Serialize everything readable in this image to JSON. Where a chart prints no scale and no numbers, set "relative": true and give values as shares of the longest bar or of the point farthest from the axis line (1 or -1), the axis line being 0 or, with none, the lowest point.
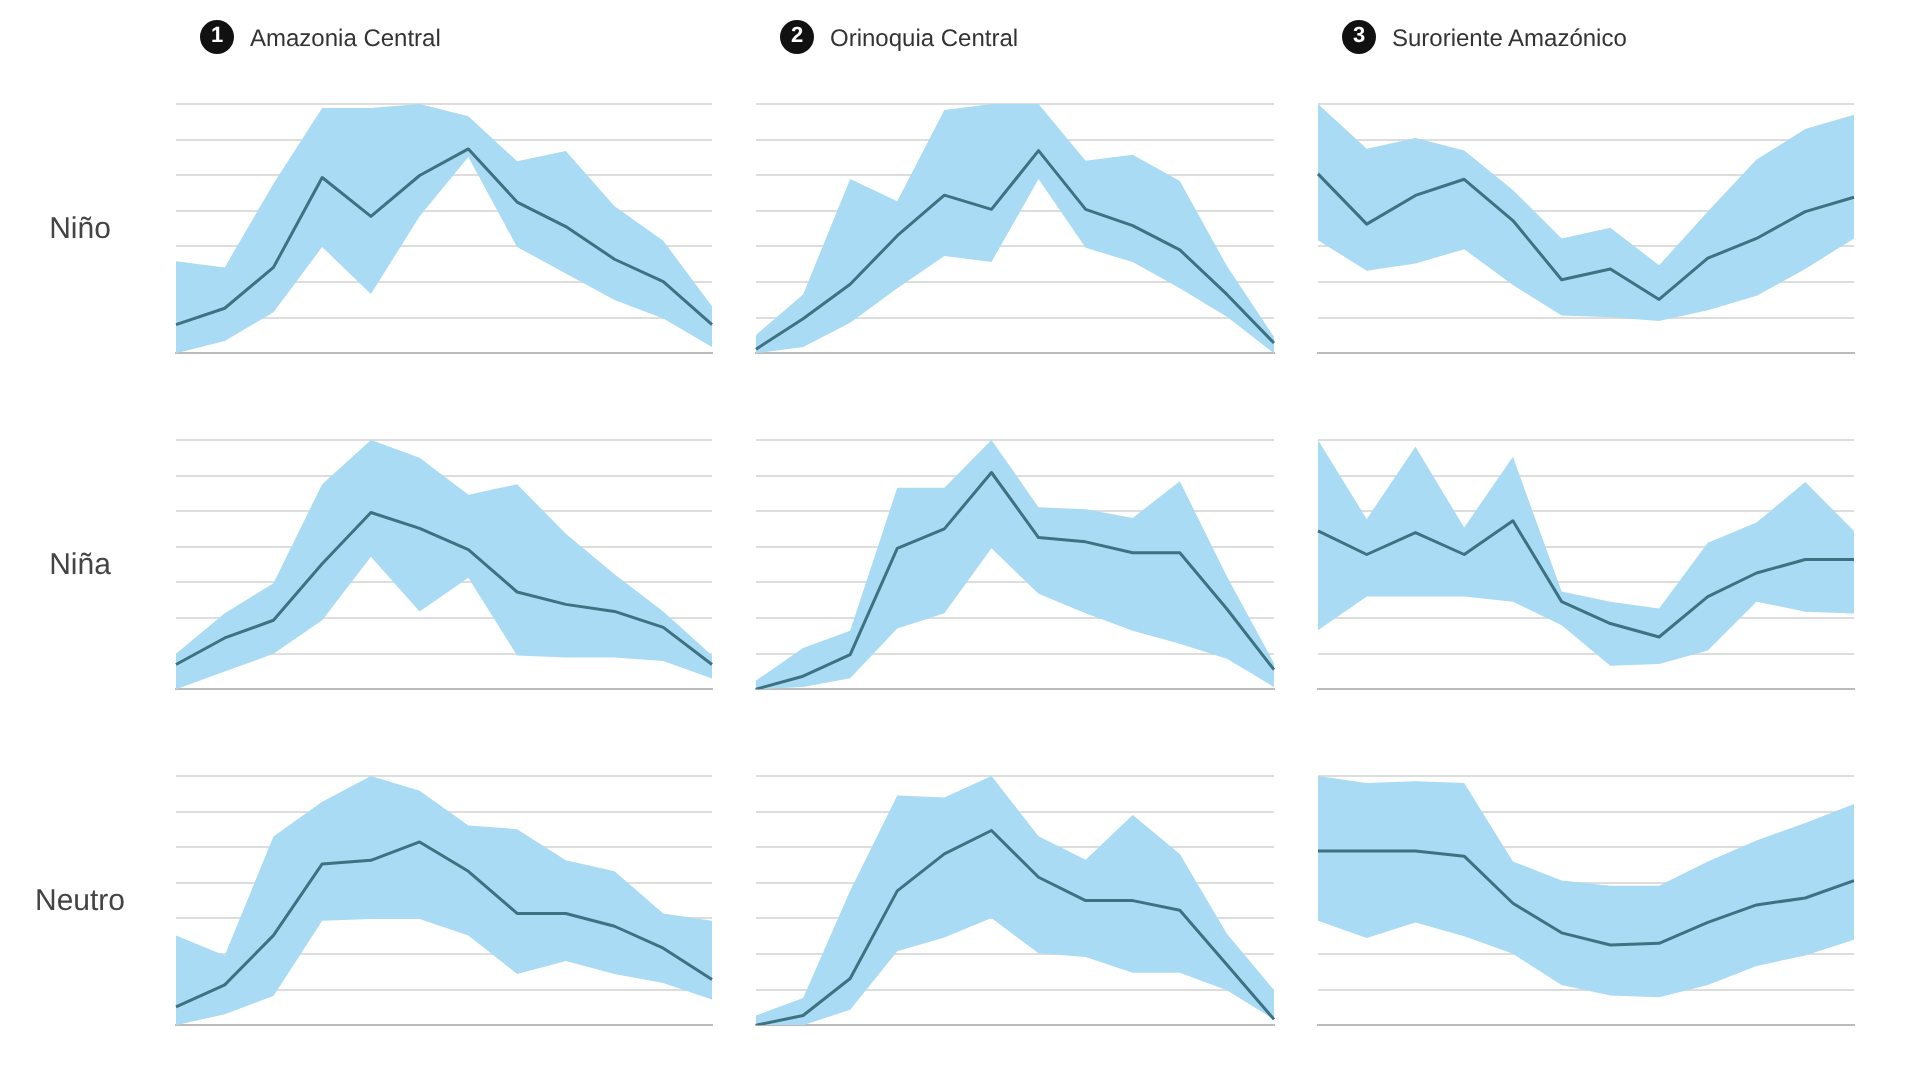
{
  "chart_data": [
    {
      "type": "line",
      "relative": true,
      "grid": "y",
      "title": "Amazonia Central",
      "annotations": [
        "1"
      ],
      "ylabel": "Niño",
      "categories": [
        null,
        null,
        null,
        null,
        null,
        null,
        null,
        null,
        null,
        null,
        null,
        null
      ],
      "series": [
        {
          "color": "#3d7282",
          "values": [
            0.14,
            0.22,
            0.42,
            0.86,
            0.67,
            0.87,
            1,
            0.74,
            0.62,
            0.46,
            0.35,
            0.14
          ],
          "lower": [
            0,
            0.06,
            0.2,
            0.52,
            0.29,
            0.67,
            0.96,
            0.52,
            0.39,
            0.26,
            0.17,
            0.03
          ],
          "upper": [
            0.45,
            0.42,
            0.83,
            1.2,
            1.2,
            1.22,
            1.16,
            0.94,
            0.99,
            0.72,
            0.55,
            0.23
          ]
        }
      ]
    },
    {
      "type": "line",
      "relative": true,
      "grid": "y",
      "title": "Orinoquia Central",
      "annotations": [
        "2"
      ],
      "categories": [
        null,
        null,
        null,
        null,
        null,
        null,
        null,
        null,
        null,
        null,
        null,
        null
      ],
      "series": [
        {
          "color": "#3d7282",
          "values": [
            0.02,
            0.17,
            0.34,
            0.58,
            0.78,
            0.71,
            1,
            0.71,
            0.63,
            0.51,
            0.29,
            0.05
          ],
          "lower": [
            0,
            0.03,
            0.15,
            0.32,
            0.48,
            0.45,
            0.86,
            0.52,
            0.45,
            0.32,
            0.18,
            0
          ],
          "upper": [
            0.09,
            0.29,
            0.86,
            0.75,
            1.2,
            1.23,
            1.23,
            0.95,
            0.98,
            0.85,
            0.43,
            0.08
          ]
        }
      ]
    },
    {
      "type": "line",
      "relative": true,
      "grid": "y",
      "title": "Suroriente Amazónico",
      "annotations": [
        "3"
      ],
      "categories": [
        null,
        null,
        null,
        null,
        null,
        null,
        null,
        null,
        null,
        null,
        null,
        null
      ],
      "series": [
        {
          "color": "#3d7282",
          "values": [
            1,
            0.72,
            0.88,
            0.97,
            0.74,
            0.41,
            0.47,
            0.3,
            0.53,
            0.64,
            0.79,
            0.87
          ],
          "lower": [
            0.63,
            0.46,
            0.5,
            0.58,
            0.38,
            0.21,
            0.2,
            0.18,
            0.24,
            0.32,
            0.47,
            0.64
          ],
          "upper": [
            1.39,
            1.14,
            1.2,
            1.13,
            0.91,
            0.64,
            0.7,
            0.49,
            0.79,
            1.08,
            1.25,
            1.33
          ]
        }
      ]
    },
    {
      "type": "line",
      "relative": true,
      "grid": "y",
      "ylabel": "Niña",
      "categories": [
        null,
        null,
        null,
        null,
        null,
        null,
        null,
        null,
        null,
        null,
        null,
        null
      ],
      "series": [
        {
          "color": "#3d7282",
          "values": [
            0.14,
            0.29,
            0.39,
            0.71,
            1,
            0.91,
            0.79,
            0.55,
            0.48,
            0.44,
            0.35,
            0.14
          ],
          "lower": [
            0,
            0.1,
            0.2,
            0.39,
            0.75,
            0.44,
            0.63,
            0.19,
            0.18,
            0.18,
            0.16,
            0.06
          ],
          "upper": [
            0.2,
            0.43,
            0.6,
            1.16,
            1.41,
            1.31,
            1.1,
            1.16,
            0.88,
            0.65,
            0.44,
            0.19
          ]
        }
      ]
    },
    {
      "type": "line",
      "relative": true,
      "grid": "y",
      "categories": [
        null,
        null,
        null,
        null,
        null,
        null,
        null,
        null,
        null,
        null,
        null,
        null
      ],
      "series": [
        {
          "color": "#3d7282",
          "values": [
            0,
            0.06,
            0.16,
            0.65,
            0.74,
            1,
            0.7,
            0.68,
            0.63,
            0.63,
            0.37,
            0.09
          ],
          "lower": [
            0,
            0.01,
            0.05,
            0.28,
            0.35,
            0.65,
            0.44,
            0.35,
            0.27,
            0.21,
            0.14,
            0.01
          ],
          "upper": [
            0.04,
            0.19,
            0.27,
            0.93,
            0.93,
            1.15,
            0.84,
            0.83,
            0.79,
            0.96,
            0.52,
            0.12
          ]
        }
      ]
    },
    {
      "type": "line",
      "relative": true,
      "grid": "y",
      "categories": [
        null,
        null,
        null,
        null,
        null,
        null,
        null,
        null,
        null,
        null,
        null,
        null
      ],
      "series": [
        {
          "color": "#3d7282",
          "values": [
            0.94,
            0.8,
            0.93,
            0.8,
            1,
            0.52,
            0.39,
            0.31,
            0.55,
            0.69,
            0.77,
            0.77
          ],
          "lower": [
            0.35,
            0.55,
            0.55,
            0.55,
            0.52,
            0.38,
            0.14,
            0.15,
            0.23,
            0.52,
            0.46,
            0.45
          ],
          "upper": [
            1.48,
            1.01,
            1.44,
            0.96,
            1.38,
            0.58,
            0.52,
            0.48,
            0.87,
            0.99,
            1.23,
            0.94
          ]
        }
      ]
    },
    {
      "type": "line",
      "relative": true,
      "grid": "y",
      "ylabel": "Neutro",
      "categories": [
        null,
        null,
        null,
        null,
        null,
        null,
        null,
        null,
        null,
        null,
        null,
        null
      ],
      "series": [
        {
          "color": "#3d7282",
          "values": [
            0.1,
            0.22,
            0.49,
            0.88,
            0.9,
            1,
            0.84,
            0.61,
            0.61,
            0.54,
            0.42,
            0.25
          ],
          "lower": [
            0,
            0.06,
            0.16,
            0.57,
            0.58,
            0.58,
            0.49,
            0.28,
            0.35,
            0.28,
            0.23,
            0.14
          ],
          "upper": [
            0.49,
            0.38,
            1.03,
            1.22,
            1.36,
            1.28,
            1.09,
            1.07,
            0.9,
            0.84,
            0.61,
            0.57
          ]
        }
      ]
    },
    {
      "type": "line",
      "relative": true,
      "grid": "y",
      "categories": [
        null,
        null,
        null,
        null,
        null,
        null,
        null,
        null,
        null,
        null,
        null,
        null
      ],
      "series": [
        {
          "color": "#3d7282",
          "values": [
            0,
            0.05,
            0.24,
            0.69,
            0.88,
            1,
            0.76,
            0.64,
            0.64,
            0.59,
            0.31,
            0.03
          ],
          "lower": [
            0,
            0,
            0.08,
            0.38,
            0.45,
            0.55,
            0.37,
            0.35,
            0.27,
            0.27,
            0.18,
            0.03
          ],
          "upper": [
            0.05,
            0.14,
            0.69,
            1.18,
            1.17,
            1.28,
            0.97,
            0.85,
            1.08,
            0.88,
            0.47,
            0.18
          ]
        }
      ]
    },
    {
      "type": "line",
      "relative": true,
      "grid": "y",
      "categories": [
        null,
        null,
        null,
        null,
        null,
        null,
        null,
        null,
        null,
        null,
        null,
        null
      ],
      "series": [
        {
          "color": "#3d7282",
          "values": [
            1,
            1,
            1,
            0.97,
            0.7,
            0.53,
            0.46,
            0.47,
            0.59,
            0.69,
            0.73,
            0.83
          ],
          "lower": [
            0.6,
            0.5,
            0.59,
            0.51,
            0.41,
            0.23,
            0.17,
            0.16,
            0.23,
            0.34,
            0.4,
            0.49
          ],
          "upper": [
            1.43,
            1.39,
            1.4,
            1.39,
            0.94,
            0.83,
            0.8,
            0.8,
            0.94,
            1.06,
            1.16,
            1.27
          ]
        }
      ]
    }
  ]
}
